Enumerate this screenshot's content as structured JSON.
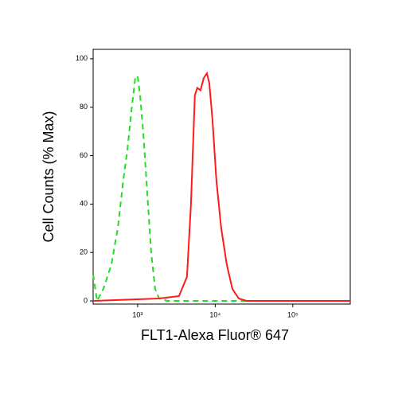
{
  "chart_data": {
    "type": "line",
    "xlabel": "FLT1-Alexa Fluor® 647",
    "ylabel": "Cell Counts (% Max)",
    "xscale": "log",
    "xlim": [
      267,
      550000
    ],
    "ylim": [
      -1.3,
      103.9
    ],
    "xticks": [
      {
        "value": 1000,
        "label": "10³"
      },
      {
        "value": 10000,
        "label": "10⁴"
      },
      {
        "value": 100000,
        "label": "10⁵"
      }
    ],
    "yticks": [
      0,
      20,
      40,
      60,
      80,
      100
    ],
    "series": [
      {
        "color": "#22dd22",
        "dash": true,
        "x": [
          267,
          300,
          362,
          459,
          555,
          654,
          736,
          828,
          931,
          1000,
          1074,
          1180,
          1327,
          1493,
          1682,
          1892,
          2395,
          20090,
          550000
        ],
        "values": [
          11,
          0,
          5,
          15,
          30,
          50,
          62,
          78,
          92,
          93,
          85,
          70,
          45,
          20,
          5,
          1,
          0,
          0,
          0
        ]
      },
      {
        "color": "#ff1a1a",
        "dash": false,
        "x": [
          267,
          1892,
          3413,
          4325,
          4864,
          5472,
          5875,
          6457,
          7098,
          7805,
          8375,
          9205,
          10355,
          11940,
          14090,
          16630,
          20090,
          25410,
          550000
        ],
        "values": [
          0,
          1,
          2,
          10,
          40,
          85,
          88,
          87,
          92,
          94,
          90,
          75,
          50,
          30,
          15,
          5,
          1,
          0,
          0
        ]
      }
    ]
  }
}
